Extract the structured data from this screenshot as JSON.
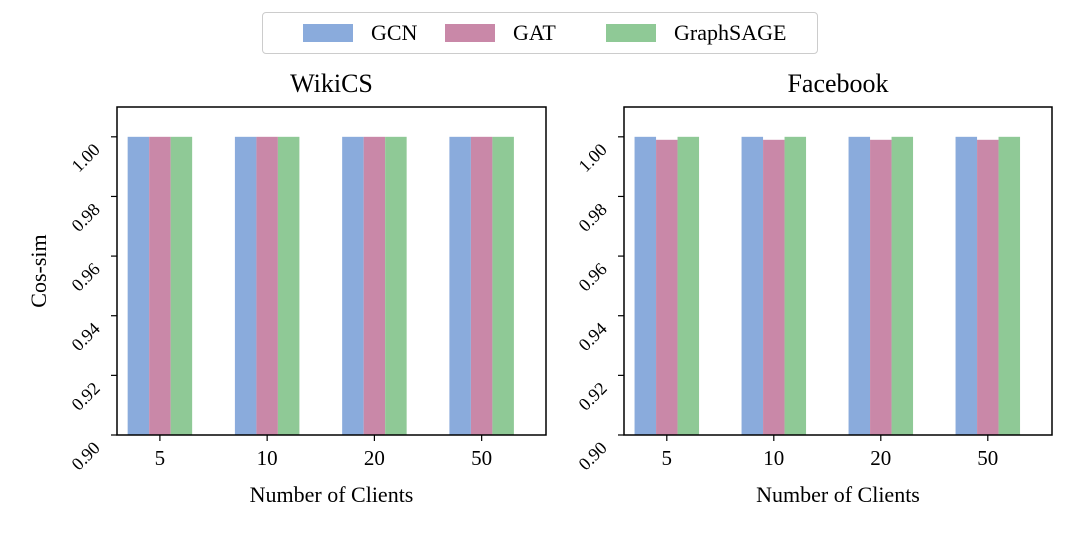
{
  "legend": {
    "items": [
      {
        "label": "GCN",
        "color": "#8aabdc"
      },
      {
        "label": "GAT",
        "color": "#c988a8"
      },
      {
        "label": "GraphSAGE",
        "color": "#8fc996"
      }
    ]
  },
  "chart_data": [
    {
      "type": "bar",
      "title": "WikiCS",
      "xlabel": "Number of Clients",
      "ylabel": "Cos-sim",
      "categories": [
        "5",
        "10",
        "20",
        "50"
      ],
      "ylim": [
        0.9,
        1.01
      ],
      "yticks": [
        "0.90",
        "0.92",
        "0.94",
        "0.96",
        "0.98",
        "1.00"
      ],
      "series": [
        {
          "name": "GCN",
          "values": [
            1.0,
            1.0,
            1.0,
            1.0
          ]
        },
        {
          "name": "GAT",
          "values": [
            1.0,
            1.0,
            1.0,
            1.0
          ]
        },
        {
          "name": "GraphSAGE",
          "values": [
            1.0,
            1.0,
            1.0,
            1.0
          ]
        }
      ]
    },
    {
      "type": "bar",
      "title": "Facebook",
      "xlabel": "Number of Clients",
      "ylabel": "",
      "categories": [
        "5",
        "10",
        "20",
        "50"
      ],
      "ylim": [
        0.9,
        1.01
      ],
      "yticks": [
        "0.90",
        "0.92",
        "0.94",
        "0.96",
        "0.98",
        "1.00"
      ],
      "series": [
        {
          "name": "GCN",
          "values": [
            1.0,
            1.0,
            1.0,
            1.0
          ]
        },
        {
          "name": "GAT",
          "values": [
            0.999,
            0.999,
            0.999,
            0.999
          ]
        },
        {
          "name": "GraphSAGE",
          "values": [
            1.0,
            1.0,
            1.0,
            1.0
          ]
        }
      ]
    }
  ]
}
